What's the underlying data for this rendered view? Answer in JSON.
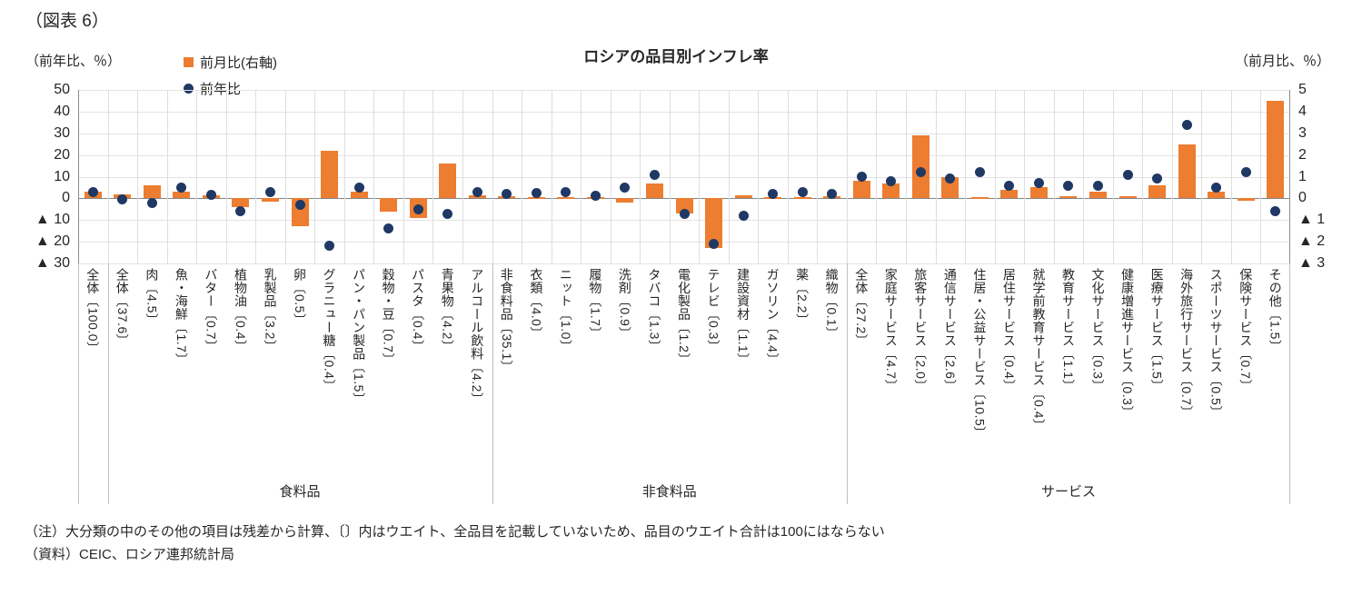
{
  "figure_label": "（図表 6）",
  "title": "ロシアの品目別インフレ率",
  "left_axis_unit": "（前年比、％）",
  "right_axis_unit": "（前月比、％）",
  "legend": [
    {
      "label": "前月比(右軸)",
      "marker": "square",
      "color": "#ED7D31"
    },
    {
      "label": "前年比",
      "marker": "circle",
      "color": "#1F3864"
    }
  ],
  "notes": [
    "（注）大分類の中のその他の項目は残差から計算、〔〕内はウエイト、全品目を記載していないため、品目のウエイト合計は100にはならない",
    "（資料）CEIC、ロシア連邦統計局"
  ],
  "chart_data": {
    "type": "combo",
    "title": "ロシアの品目別インフレ率",
    "categories": [
      "全体〔100.0〕",
      "全体〔37.6〕",
      "肉〔4.5〕",
      "魚・海鮮〔1.7〕",
      "バター〔0.7〕",
      "植物油〔0.4〕",
      "乳製品〔3.2〕",
      "卵〔0.5〕",
      "グラニュー糖〔0.4〕",
      "パン・パン製品〔1.5〕",
      "穀物・豆〔0.7〕",
      "パスタ〔0.4〕",
      "青果物〔4.2〕",
      "アルコール飲料〔4.2〕",
      "非食料品〔35.1〕",
      "衣類〔4.0〕",
      "ニット〔1.0〕",
      "履物〔1.7〕",
      "洗剤〔0.9〕",
      "タバコ〔1.3〕",
      "電化製品〔1.2〕",
      "テレビ〔0.3〕",
      "建設資材〔1.1〕",
      "ガソリン〔4.4〕",
      "薬〔2.2〕",
      "織物〔0.1〕",
      "全体〔27.2〕",
      "家庭サービス〔4.7〕",
      "旅客サービス〔2.0〕",
      "通信サービス〔2.6〕",
      "住居・公益サービス〔10.5〕",
      "居住サービス〔0.4〕",
      "就学前教育サービス〔0.4〕",
      "教育サービス〔1.1〕",
      "文化サービス〔0.3〕",
      "健康増進サービス〔0.3〕",
      "医療サービス〔1.5〕",
      "海外旅行サービス〔0.7〕",
      "スポーツサービス〔0.5〕",
      "保険サービス〔0.7〕",
      "その他〔1.5〕"
    ],
    "series": [
      {
        "name": "前月比(右軸)",
        "type": "bar",
        "axis": "right",
        "color": "#ED7D31",
        "values": [
          0.3,
          0.2,
          0.6,
          0.3,
          0.15,
          -0.4,
          -0.15,
          -1.3,
          2.2,
          0.3,
          -0.6,
          -0.9,
          1.6,
          0.15,
          0.1,
          0.05,
          0.05,
          0.05,
          -0.2,
          0.7,
          -0.7,
          -2.3,
          0.15,
          0.05,
          0.05,
          0.1,
          0.8,
          0.7,
          2.9,
          1.0,
          0.05,
          0.4,
          0.5,
          0.1,
          0.3,
          0.1,
          0.6,
          2.5,
          0.3,
          -0.1,
          4.5
        ]
      },
      {
        "name": "前年比",
        "type": "scatter",
        "axis": "left",
        "color": "#1F3864",
        "values": [
          3,
          -0.5,
          -2,
          5,
          1.5,
          -6,
          3,
          -3,
          -22,
          5,
          -14,
          -5,
          -7,
          3,
          2,
          2.5,
          3,
          1,
          5,
          11,
          -7,
          -21,
          -8,
          2,
          3,
          2,
          10,
          8,
          12,
          9,
          12,
          6,
          7,
          6,
          6,
          11,
          9,
          34,
          5,
          12,
          -6
        ]
      }
    ],
    "left_axis": {
      "title": "（前年比、％）",
      "max": 50,
      "min": -30,
      "ticks": [
        "50",
        "40",
        "30",
        "20",
        "10",
        "0",
        "▲ 10",
        "▲ 20",
        "▲ 30"
      ]
    },
    "right_axis": {
      "title": "（前月比、％）",
      "max": 5,
      "min": -3,
      "ticks": [
        "5",
        "4",
        "3",
        "2",
        "1",
        "0",
        "▲ 1",
        "▲ 2",
        "▲ 3"
      ]
    },
    "groups": [
      {
        "label": "食料品",
        "start": 1,
        "end": 13
      },
      {
        "label": "非食料品",
        "start": 14,
        "end": 25
      },
      {
        "label": "サービス",
        "start": 26,
        "end": 40
      }
    ],
    "grid": true,
    "legend_position": "top-left"
  }
}
